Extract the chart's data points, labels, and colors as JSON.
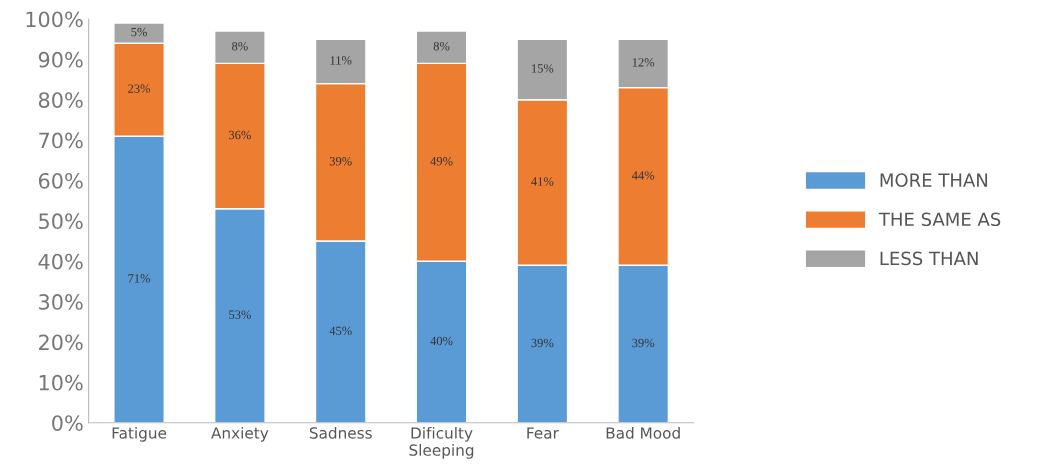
{
  "chart_data": {
    "type": "bar",
    "stacked": true,
    "categories": [
      "Fatigue",
      "Anxiety",
      "Sadness",
      "Dificulty\nSleeping",
      "Fear",
      "Bad Mood"
    ],
    "series": [
      {
        "name": "MORE THAN",
        "color": "#5b9bd5",
        "values": [
          71,
          53,
          45,
          40,
          39,
          39
        ],
        "value_labels": [
          "71%",
          "53%",
          "45%",
          "40%",
          "39%",
          "39%"
        ]
      },
      {
        "name": "THE SAME AS",
        "color": "#ed7d31",
        "values": [
          23,
          36,
          39,
          49,
          41,
          44
        ],
        "value_labels": [
          "23%",
          "36%",
          "39%",
          "49%",
          "41%",
          "44%"
        ]
      },
      {
        "name": "LESS THAN",
        "color": "#a5a5a5",
        "values": [
          5,
          8,
          11,
          8,
          15,
          12
        ],
        "value_labels": [
          "5%",
          "8%",
          "11%",
          "8%",
          "15%",
          "12%"
        ]
      }
    ],
    "ylim": [
      0,
      100
    ],
    "yticks": [
      {
        "value": 0,
        "label": "0%"
      },
      {
        "value": 10,
        "label": "10%"
      },
      {
        "value": 20,
        "label": "20%"
      },
      {
        "value": 30,
        "label": "30%"
      },
      {
        "value": 40,
        "label": "40%"
      },
      {
        "value": 50,
        "label": "50%"
      },
      {
        "value": 60,
        "label": "60%"
      },
      {
        "value": 70,
        "label": "70%"
      },
      {
        "value": 80,
        "label": "80%"
      },
      {
        "value": 90,
        "label": "90%"
      },
      {
        "value": 100,
        "label": "100%"
      }
    ],
    "grid": false,
    "legend": "right"
  }
}
